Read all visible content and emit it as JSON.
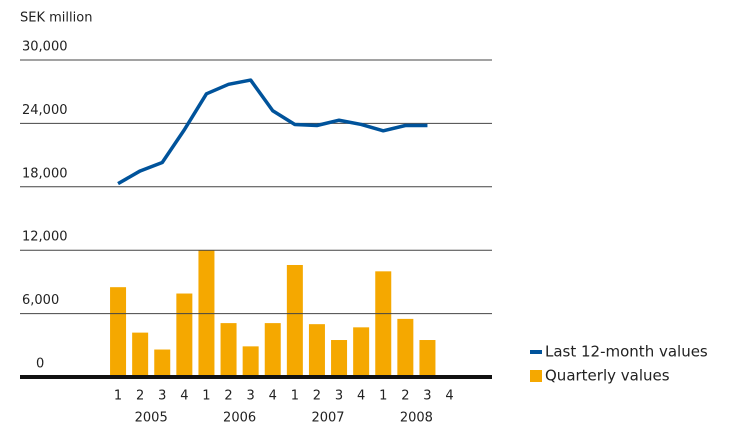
{
  "chart_data": {
    "type": "bar_line",
    "y_axis_label": "SEK million",
    "categories": [
      "1",
      "2",
      "3",
      "4",
      "1",
      "2",
      "3",
      "4",
      "1",
      "2",
      "3",
      "4",
      "1",
      "2",
      "3",
      "4"
    ],
    "groups": [
      "2005",
      "2006",
      "2007",
      "2008"
    ],
    "series": [
      {
        "name": "Last 12-month values",
        "type": "line",
        "color": "#00539b",
        "values": [
          18300,
          19500,
          20300,
          23400,
          26800,
          27700,
          28100,
          25200,
          23900,
          23800,
          24300,
          23900,
          23300,
          23800,
          23800,
          null
        ]
      },
      {
        "name": "Quarterly values",
        "type": "bar",
        "color": "#f5a800",
        "values": [
          8500,
          4200,
          2600,
          7900,
          12000,
          5100,
          2900,
          5100,
          10600,
          5000,
          3500,
          4700,
          10000,
          5500,
          3500,
          null
        ]
      }
    ],
    "ylim": [
      0,
      30000
    ],
    "yticks": [
      0,
      {
        "value": 6000,
        "label": "6,000"
      },
      {
        "value": 12000,
        "label": "12,000"
      },
      {
        "value": 18000,
        "label": "18,000"
      },
      {
        "value": 24000,
        "label": "24,000"
      },
      {
        "value": 30000,
        "label": "30,000"
      }
    ],
    "grid": true,
    "legend": "lower right"
  }
}
